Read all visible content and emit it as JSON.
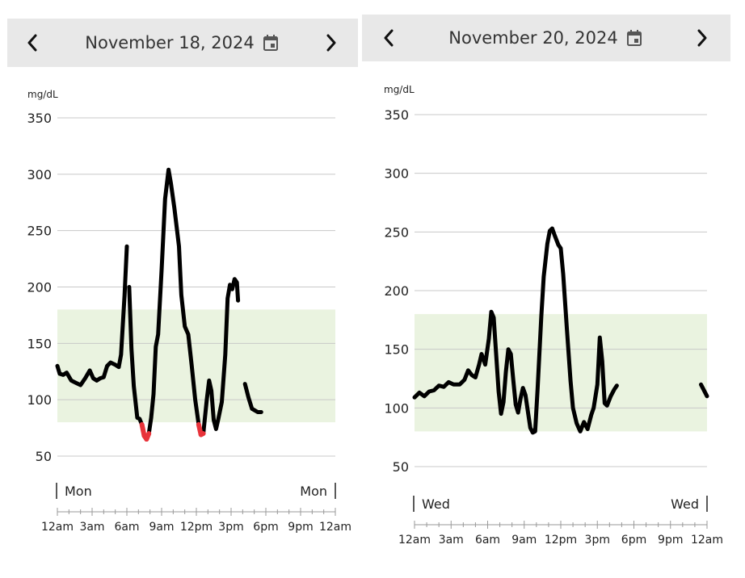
{
  "colors": {
    "line": "#000000",
    "low": "#e8333a",
    "target_band": "#eaf3e0",
    "grid": "#c8c8c8",
    "header_bg": "#e8e8e8"
  },
  "icons": {
    "prev": "chevron-left-icon",
    "next": "chevron-right-icon",
    "calendar": "calendar-icon"
  },
  "panels": [
    {
      "date_label": "November 18, 2024",
      "unit_label": "mg/dL",
      "day_start": "Mon",
      "day_end": "Mon"
    },
    {
      "date_label": "November 20, 2024",
      "unit_label": "mg/dL",
      "day_start": "Wed",
      "day_end": "Wed"
    }
  ],
  "chart_data": [
    {
      "type": "line",
      "title": "November 18, 2024",
      "ylabel": "mg/dL",
      "ylim": [
        50,
        350
      ],
      "y_ticks": [
        50,
        100,
        150,
        200,
        250,
        300,
        350
      ],
      "target_range": [
        80,
        180
      ],
      "x_tick_labels": [
        "12am",
        "3am",
        "6am",
        "9am",
        "12pm",
        "3pm",
        "6pm",
        "9pm",
        "12am"
      ],
      "x_range_hours": [
        0,
        24
      ],
      "low_threshold": 70,
      "segments": [
        [
          [
            0,
            130
          ],
          [
            0.2,
            123
          ],
          [
            0.5,
            122
          ],
          [
            0.8,
            124
          ],
          [
            1.2,
            117
          ],
          [
            1.6,
            115
          ],
          [
            2.0,
            113
          ],
          [
            2.4,
            119
          ],
          [
            2.8,
            126
          ],
          [
            3.1,
            119
          ],
          [
            3.4,
            117
          ],
          [
            3.7,
            119
          ],
          [
            4.0,
            120
          ],
          [
            4.3,
            130
          ],
          [
            4.6,
            133
          ],
          [
            5.0,
            131
          ],
          [
            5.3,
            129
          ],
          [
            5.5,
            140
          ],
          [
            5.8,
            192
          ],
          [
            6.0,
            236
          ]
        ],
        [
          [
            6.2,
            200
          ],
          [
            6.4,
            145
          ],
          [
            6.6,
            112
          ],
          [
            6.9,
            84
          ],
          [
            7.1,
            83
          ],
          [
            7.3,
            78
          ],
          [
            7.5,
            68
          ],
          [
            7.7,
            65
          ],
          [
            7.9,
            70
          ],
          [
            8.1,
            84
          ],
          [
            8.3,
            105
          ],
          [
            8.5,
            147
          ],
          [
            8.7,
            158
          ],
          [
            9.0,
            215
          ],
          [
            9.3,
            278
          ],
          [
            9.6,
            304
          ],
          [
            9.8,
            292
          ],
          [
            10.1,
            270
          ],
          [
            10.5,
            236
          ],
          [
            10.7,
            193
          ],
          [
            11.0,
            165
          ],
          [
            11.3,
            158
          ],
          [
            11.6,
            130
          ],
          [
            11.9,
            100
          ],
          [
            12.2,
            78
          ],
          [
            12.4,
            69
          ],
          [
            12.6,
            70
          ],
          [
            12.9,
            100
          ],
          [
            13.1,
            117
          ],
          [
            13.3,
            108
          ],
          [
            13.5,
            82
          ],
          [
            13.7,
            74
          ],
          [
            13.9,
            83
          ],
          [
            14.2,
            98
          ],
          [
            14.5,
            140
          ],
          [
            14.7,
            190
          ],
          [
            14.9,
            202
          ],
          [
            15.1,
            198
          ],
          [
            15.3,
            207
          ],
          [
            15.5,
            204
          ],
          [
            15.6,
            188
          ]
        ],
        [
          [
            16.2,
            114
          ],
          [
            16.5,
            102
          ],
          [
            16.8,
            92
          ],
          [
            17.3,
            89
          ],
          [
            17.6,
            89
          ]
        ]
      ]
    },
    {
      "type": "line",
      "title": "November 20, 2024",
      "ylabel": "mg/dL",
      "ylim": [
        50,
        350
      ],
      "y_ticks": [
        50,
        100,
        150,
        200,
        250,
        300,
        350
      ],
      "target_range": [
        80,
        180
      ],
      "x_tick_labels": [
        "12am",
        "3am",
        "6am",
        "9am",
        "12pm",
        "3pm",
        "6pm",
        "9pm",
        "12am"
      ],
      "x_range_hours": [
        0,
        24
      ],
      "low_threshold": 70,
      "segments": [
        [
          [
            0,
            109
          ],
          [
            0.4,
            113
          ],
          [
            0.8,
            110
          ],
          [
            1.2,
            114
          ],
          [
            1.6,
            115
          ],
          [
            2.0,
            119
          ],
          [
            2.4,
            118
          ],
          [
            2.8,
            122
          ],
          [
            3.2,
            120
          ],
          [
            3.7,
            120
          ],
          [
            4.1,
            124
          ],
          [
            4.4,
            132
          ],
          [
            4.7,
            128
          ],
          [
            5.0,
            126
          ],
          [
            5.3,
            137
          ],
          [
            5.5,
            146
          ],
          [
            5.8,
            137
          ],
          [
            6.1,
            159
          ],
          [
            6.3,
            182
          ],
          [
            6.5,
            177
          ],
          [
            6.7,
            145
          ],
          [
            6.9,
            114
          ],
          [
            7.1,
            95
          ],
          [
            7.3,
            105
          ],
          [
            7.5,
            131
          ],
          [
            7.7,
            150
          ],
          [
            7.9,
            146
          ],
          [
            8.1,
            124
          ],
          [
            8.3,
            103
          ],
          [
            8.5,
            96
          ],
          [
            8.7,
            108
          ],
          [
            8.9,
            117
          ],
          [
            9.1,
            111
          ],
          [
            9.3,
            97
          ],
          [
            9.5,
            83
          ],
          [
            9.7,
            79
          ],
          [
            9.9,
            80
          ],
          [
            10.1,
            116
          ],
          [
            10.4,
            178
          ],
          [
            10.6,
            212
          ],
          [
            10.9,
            240
          ],
          [
            11.1,
            251
          ],
          [
            11.3,
            253
          ],
          [
            11.5,
            247
          ],
          [
            11.8,
            239
          ],
          [
            12.0,
            236
          ],
          [
            12.2,
            214
          ],
          [
            12.5,
            168
          ],
          [
            12.8,
            123
          ],
          [
            13.0,
            100
          ],
          [
            13.3,
            87
          ],
          [
            13.6,
            80
          ],
          [
            13.9,
            88
          ],
          [
            14.2,
            82
          ],
          [
            14.5,
            94
          ],
          [
            14.7,
            100
          ],
          [
            15.0,
            120
          ],
          [
            15.2,
            160
          ],
          [
            15.4,
            140
          ],
          [
            15.6,
            104
          ],
          [
            15.8,
            102
          ],
          [
            16.1,
            110
          ],
          [
            16.4,
            116
          ],
          [
            16.6,
            119
          ]
        ],
        [
          [
            23.5,
            120
          ],
          [
            24,
            110
          ]
        ]
      ]
    }
  ]
}
